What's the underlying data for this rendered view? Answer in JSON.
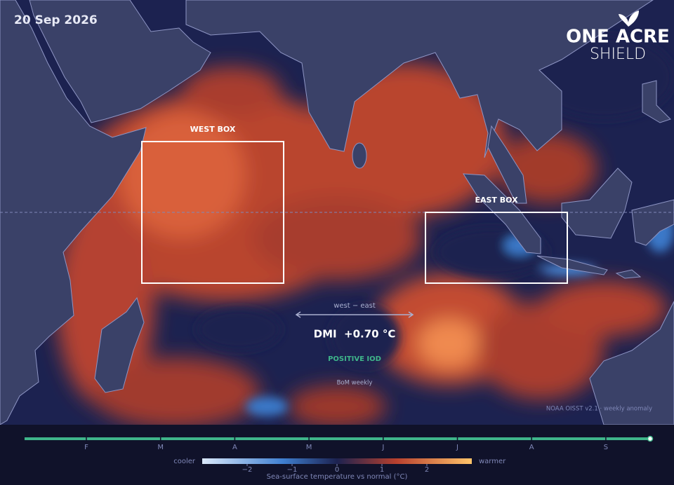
{
  "date": "20 Sep 2026",
  "logo": {
    "line1": "ONE ACRE",
    "line2": "SHIELD"
  },
  "map": {
    "boxes": [
      {
        "label": "WEST BOX"
      },
      {
        "label": "EAST BOX"
      }
    ],
    "annotation": {
      "caption": "west − east",
      "headline": "DMI  +0.70 °C",
      "status": "POSITIVE IOD",
      "source": "BoM weekly"
    },
    "credit": "NOAA OISST v2.1 · weekly anomaly"
  },
  "timeline": {
    "months": [
      "F",
      "M",
      "A",
      "M",
      "J",
      "J",
      "A",
      "S"
    ]
  },
  "legend": {
    "low": "cooler",
    "high": "warmer",
    "range": [
      -3,
      3
    ],
    "ticks": [
      {
        "value": -2,
        "label": "−2"
      },
      {
        "value": -1,
        "label": "−1"
      },
      0,
      1,
      2
    ],
    "title": "Sea-surface temperature vs normal (°C)"
  }
}
